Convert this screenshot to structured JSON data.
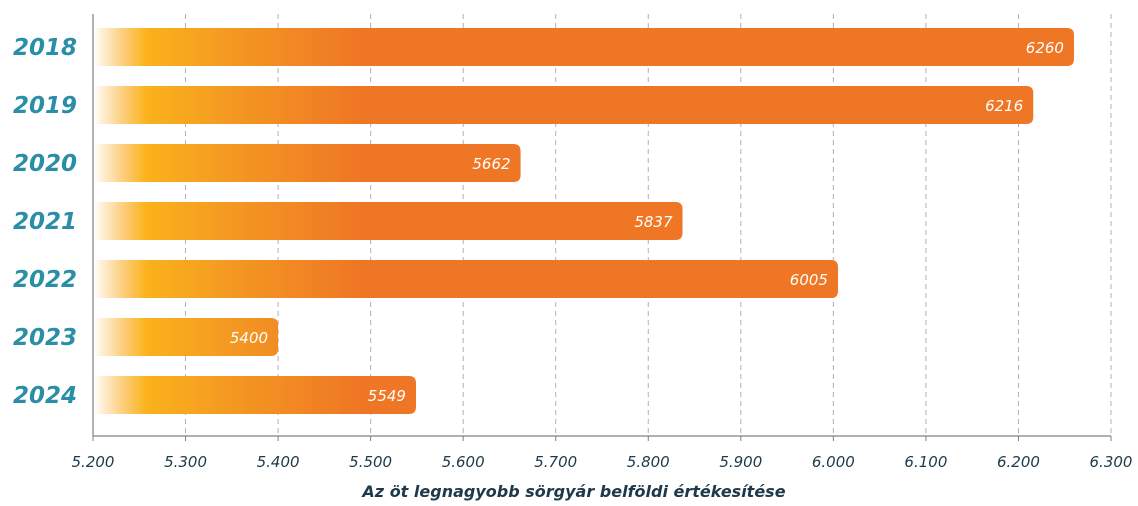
{
  "chart_data": {
    "type": "bar",
    "orientation": "horizontal",
    "categories": [
      "2018",
      "2019",
      "2020",
      "2021",
      "2022",
      "2023",
      "2024"
    ],
    "values": [
      6260,
      6216,
      5662,
      5837,
      6005,
      5400,
      5549
    ],
    "value_labels": [
      "6260",
      "6216",
      "5662",
      "5837",
      "6005",
      "5400",
      "5549"
    ],
    "xlabel": "Az öt legnagyobb sörgyár belföldi értékesítése",
    "ylabel": "",
    "xlim": [
      5200,
      6300
    ],
    "xticks": [
      5200,
      5300,
      5400,
      5500,
      5600,
      5700,
      5800,
      5900,
      6000,
      6100,
      6200,
      6300
    ],
    "xtick_labels": [
      "5.200",
      "5.300",
      "5.400",
      "5.500",
      "5.600",
      "5.700",
      "5.800",
      "5.900",
      "6.000",
      "6.100",
      "6.200",
      "6.300"
    ],
    "grid": "vertical dashed",
    "colors": {
      "bar_start": "#ffffff",
      "bar_mid": "#fbb21b",
      "bar_end": "#ef7624",
      "category_label": "#2a8fa6",
      "axis_text": "#1e3a4a",
      "grid": "#b0b0b0",
      "axis_line": "#808080"
    }
  }
}
